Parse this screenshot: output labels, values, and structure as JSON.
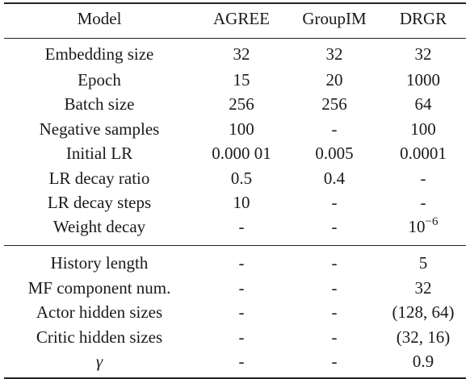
{
  "table": {
    "headers": [
      "Model",
      "AGREE",
      "GroupIM",
      "DRGR"
    ],
    "group1": [
      {
        "label": "Embedding size",
        "values": [
          "32",
          "32",
          "32"
        ]
      },
      {
        "label": "Epoch",
        "values": [
          "15",
          "20",
          "1000"
        ]
      },
      {
        "label": "Batch size",
        "values": [
          "256",
          "256",
          "64"
        ]
      },
      {
        "label": "Negative samples",
        "values": [
          "100",
          "-",
          "100"
        ]
      },
      {
        "label": "Initial LR",
        "values": [
          "0.000 01",
          "0.005",
          "0.0001"
        ]
      },
      {
        "label": "LR decay ratio",
        "values": [
          "0.5",
          "0.4",
          "-"
        ]
      },
      {
        "label": "LR decay steps",
        "values": [
          "10",
          "-",
          "-"
        ]
      },
      {
        "label": "Weight decay",
        "values": [
          "-",
          "-",
          ""
        ],
        "drgr_base": "10",
        "drgr_exp": "−6"
      }
    ],
    "group2": [
      {
        "label": "History length",
        "values": [
          "-",
          "-",
          "5"
        ]
      },
      {
        "label": "MF component num.",
        "values": [
          "-",
          "-",
          "32"
        ]
      },
      {
        "label": "Actor hidden sizes",
        "values": [
          "-",
          "-",
          "(128, 64)"
        ]
      },
      {
        "label": "Critic hidden sizes",
        "values": [
          "-",
          "-",
          "(32, 16)"
        ]
      },
      {
        "label": "γ",
        "values": [
          "-",
          "-",
          "0.9"
        ]
      }
    ]
  }
}
